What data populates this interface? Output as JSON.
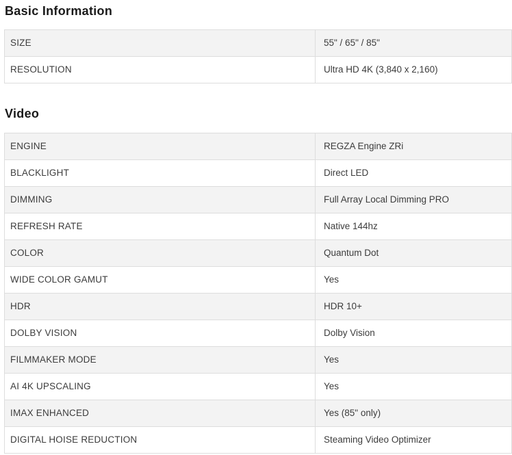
{
  "colors": {
    "row_alt_bg": "#f3f3f3",
    "row_bg": "#ffffff",
    "border": "#dddddd",
    "heading_text": "#1a1a1a",
    "cell_text": "#3c3c3c"
  },
  "sections": [
    {
      "title": "Basic Information",
      "rows": [
        {
          "label": "SIZE",
          "value": "55\" / 65\" / 85\""
        },
        {
          "label": "RESOLUTION",
          "value": "Ultra HD 4K (3,840 x 2,160)"
        }
      ]
    },
    {
      "title": "Video",
      "rows": [
        {
          "label": "ENGINE",
          "value": "REGZA Engine ZRi"
        },
        {
          "label": "BLACKLIGHT",
          "value": "Direct LED"
        },
        {
          "label": "DIMMING",
          "value": "Full Array Local Dimming PRO"
        },
        {
          "label": "REFRESH RATE",
          "value": "Native 144hz"
        },
        {
          "label": "COLOR",
          "value": "Quantum Dot"
        },
        {
          "label": "WIDE COLOR GAMUT",
          "value": "Yes"
        },
        {
          "label": "HDR",
          "value": "HDR 10+"
        },
        {
          "label": "DOLBY VISION",
          "value": "Dolby Vision"
        },
        {
          "label": "FILMMAKER MODE",
          "value": "Yes"
        },
        {
          "label": "AI 4K UPSCALING",
          "value": "Yes"
        },
        {
          "label": "IMAX ENHANCED",
          "value": "Yes (85\" only)"
        },
        {
          "label": "DIGITAL HOISE REDUCTION",
          "value": "Steaming Video Optimizer"
        }
      ]
    }
  ]
}
